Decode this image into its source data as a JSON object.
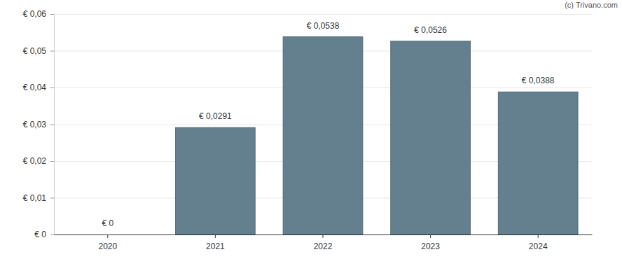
{
  "chart_data": {
    "type": "bar",
    "annotations": [
      "(c) Trivano.com"
    ],
    "categories": [
      "2020",
      "2021",
      "2022",
      "2023",
      "2024"
    ],
    "values": [
      0,
      0.0291,
      0.0538,
      0.0526,
      0.0388
    ],
    "value_labels": [
      "€ 0",
      "€ 0,0291",
      "€ 0,0538",
      "€ 0,0526",
      "€ 0,0388"
    ],
    "color": "#64808f",
    "ylim": [
      0,
      0.06
    ],
    "yticks": [
      {
        "value": 0,
        "label": "€ 0"
      },
      {
        "value": 0.01,
        "label": "€ 0,01"
      },
      {
        "value": 0.02,
        "label": "€ 0,02"
      },
      {
        "value": 0.03,
        "label": "€ 0,03"
      },
      {
        "value": 0.04,
        "label": "€ 0,04"
      },
      {
        "value": 0.05,
        "label": "€ 0,05"
      },
      {
        "value": 0.06,
        "label": "€ 0,06"
      }
    ],
    "grid": true,
    "data_labels": true
  }
}
